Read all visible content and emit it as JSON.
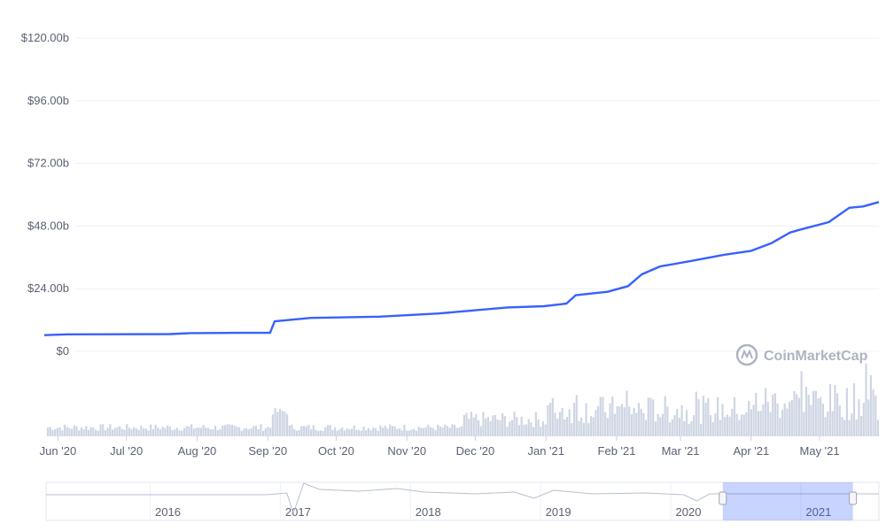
{
  "chart_data": {
    "type": "line",
    "watermark": "CoinMarketCap",
    "y_ticks": [
      "$120.00b",
      "$96.00b",
      "$72.00b",
      "$48.00b",
      "$24.00b",
      "$0"
    ],
    "ylim": [
      0,
      120
    ],
    "y_unit": "billions USD",
    "x_ticks": [
      "Jun '20",
      "Jul '20",
      "Aug '20",
      "Sep '20",
      "Oct '20",
      "Nov '20",
      "Dec '20",
      "Jan '21",
      "Feb '21",
      "Mar '21",
      "Apr '21",
      "May '21"
    ],
    "x_tick_dates": [
      "2020-06-01",
      "2020-07-01",
      "2020-08-01",
      "2020-09-01",
      "2020-10-01",
      "2020-11-01",
      "2020-12-01",
      "2021-01-01",
      "2021-02-01",
      "2021-03-01",
      "2021-04-01",
      "2021-05-01"
    ],
    "xlim": [
      "2020-05-26",
      "2021-05-27"
    ],
    "grid": true,
    "line_color": "#3861fb",
    "volume_color": "#cfd5e3",
    "series": [
      {
        "values": [
          [
            "2020-05-26",
            6.2
          ],
          [
            "2020-06-05",
            6.5
          ],
          [
            "2020-07-20",
            6.6
          ],
          [
            "2020-07-29",
            7.0
          ],
          [
            "2020-08-18",
            7.1
          ],
          [
            "2020-09-02",
            7.1
          ],
          [
            "2020-09-04",
            11.5
          ],
          [
            "2020-09-20",
            12.8
          ],
          [
            "2020-10-20",
            13.3
          ],
          [
            "2020-11-15",
            14.5
          ],
          [
            "2020-12-15",
            16.8
          ],
          [
            "2020-12-31",
            17.3
          ],
          [
            "2021-01-10",
            18.3
          ],
          [
            "2021-01-14",
            21.5
          ],
          [
            "2021-01-28",
            22.8
          ],
          [
            "2021-02-06",
            25.0
          ],
          [
            "2021-02-12",
            29.5
          ],
          [
            "2021-02-20",
            32.5
          ],
          [
            "2021-03-05",
            34.5
          ],
          [
            "2021-03-20",
            37.0
          ],
          [
            "2021-04-01",
            38.5
          ],
          [
            "2021-04-10",
            41.5
          ],
          [
            "2021-04-18",
            45.5
          ],
          [
            "2021-04-22",
            46.5
          ],
          [
            "2021-05-05",
            49.5
          ],
          [
            "2021-05-14",
            55.0
          ],
          [
            "2021-05-20",
            55.5
          ],
          [
            "2021-05-27",
            57.2
          ]
        ]
      }
    ],
    "navigator": {
      "ticks": [
        "2016",
        "2017",
        "2018",
        "2019",
        "2020",
        "2021"
      ],
      "tick_years": [
        2016,
        2017,
        2018,
        2019,
        2020,
        2021
      ],
      "range": [
        2015.2,
        2021.6
      ],
      "selected": [
        2020.4,
        2021.4
      ]
    }
  }
}
